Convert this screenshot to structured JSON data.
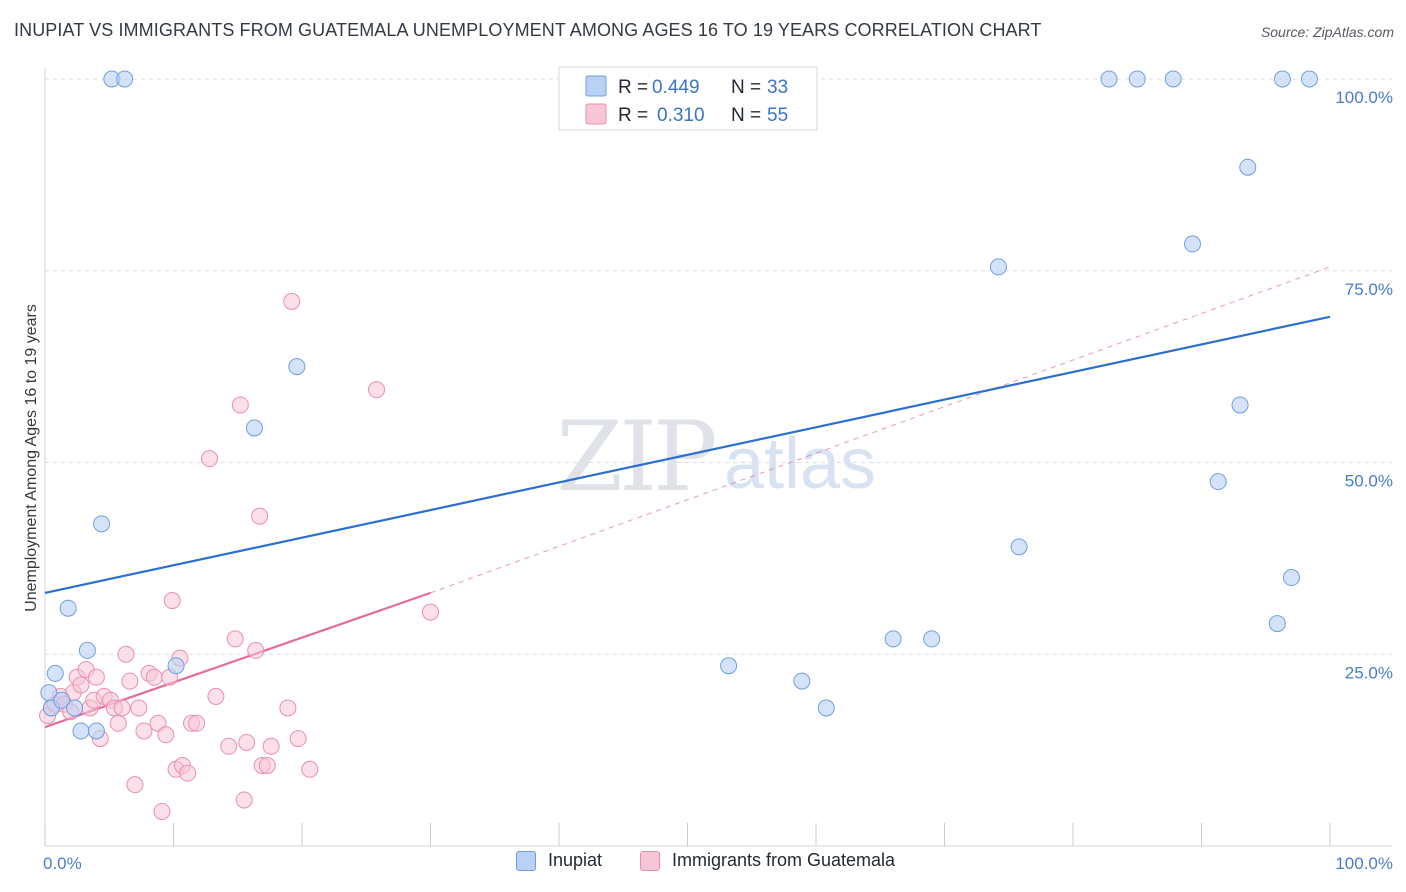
{
  "title": "INUPIAT VS IMMIGRANTS FROM GUATEMALA UNEMPLOYMENT AMONG AGES 16 TO 19 YEARS CORRELATION CHART",
  "source": "Source: ZipAtlas.com",
  "watermark": {
    "zip": "ZIP",
    "atlas": "atlas"
  },
  "colors": {
    "blue": "#6f9fe0",
    "blue_fill": "#b9d1f3",
    "blue_line": "#2b6fcf",
    "pink": "#ea8fae",
    "pink_fill": "#f7c6d6",
    "pink_line": "#e46c95",
    "tick": "#4a7ccc",
    "grid": "#d9dde3"
  },
  "legend": {
    "r_label": "R =",
    "n_label": "N =",
    "series": [
      {
        "r": "0.449",
        "n": "33"
      },
      {
        "r": "0.310",
        "n": "55"
      }
    ]
  },
  "bottom_legend": [
    "Inupiat",
    "Immigrants from Guatemala"
  ],
  "chart_data": {
    "type": "scatter",
    "title": "INUPIAT VS IMMIGRANTS FROM GUATEMALA UNEMPLOYMENT AMONG AGES 16 TO 19 YEARS CORRELATION CHART",
    "xlabel": "",
    "ylabel": "Unemployment Among Ages 16 to 19 years",
    "xlim": [
      0,
      100
    ],
    "ylim": [
      0,
      100
    ],
    "x_tick_labels": [
      "0.0%",
      "100.0%"
    ],
    "y_tick_labels": [
      {
        "value": 100,
        "label": "100.0%"
      },
      {
        "value": 75,
        "label": "75.0%"
      },
      {
        "value": 50,
        "label": "50.0%"
      },
      {
        "value": 25,
        "label": "25.0%"
      }
    ],
    "series": [
      {
        "name": "Inupiat",
        "color": "#6f9fe0",
        "r": 0.449,
        "n": 33,
        "trend": {
          "x": [
            0,
            100
          ],
          "y": [
            33,
            69
          ]
        },
        "points": [
          [
            0.3,
            20
          ],
          [
            0.5,
            18
          ],
          [
            0.8,
            22.5
          ],
          [
            1.3,
            19
          ],
          [
            1.8,
            31
          ],
          [
            2.3,
            18
          ],
          [
            2.8,
            15
          ],
          [
            3.3,
            25.5
          ],
          [
            4.0,
            15
          ],
          [
            4.4,
            42
          ],
          [
            5.2,
            100
          ],
          [
            6.2,
            100
          ],
          [
            10.2,
            23.5
          ],
          [
            16.3,
            54.5
          ],
          [
            19.6,
            62.5
          ],
          [
            53.2,
            23.5
          ],
          [
            58.9,
            21.5
          ],
          [
            60.8,
            18
          ],
          [
            66.0,
            27
          ],
          [
            69.0,
            27
          ],
          [
            74.2,
            75.5
          ],
          [
            75.8,
            39
          ],
          [
            82.8,
            100
          ],
          [
            85.0,
            100
          ],
          [
            87.8,
            100
          ],
          [
            89.3,
            78.5
          ],
          [
            91.3,
            47.5
          ],
          [
            93.0,
            57.5
          ],
          [
            93.6,
            88.5
          ],
          [
            95.9,
            29
          ],
          [
            96.3,
            100
          ],
          [
            97.0,
            35
          ],
          [
            98.4,
            100
          ]
        ]
      },
      {
        "name": "Immigrants from Guatemala",
        "color": "#ea8fae",
        "r": 0.31,
        "n": 55,
        "trend": {
          "x": [
            0,
            30
          ],
          "y": [
            15.5,
            33
          ]
        },
        "trend_ext": {
          "x": [
            30,
            100
          ],
          "y": [
            33,
            75.5
          ]
        },
        "points": [
          [
            0.2,
            17
          ],
          [
            0.5,
            18
          ],
          [
            0.8,
            18.5
          ],
          [
            1.2,
            19.5
          ],
          [
            1.5,
            18.5
          ],
          [
            2.0,
            17.5
          ],
          [
            2.2,
            20
          ],
          [
            2.5,
            22
          ],
          [
            2.8,
            21
          ],
          [
            3.2,
            23
          ],
          [
            3.5,
            18
          ],
          [
            3.8,
            19
          ],
          [
            4.0,
            22
          ],
          [
            4.3,
            14
          ],
          [
            4.6,
            19.5
          ],
          [
            5.1,
            19
          ],
          [
            5.4,
            18
          ],
          [
            5.7,
            16
          ],
          [
            6.0,
            18
          ],
          [
            6.3,
            25
          ],
          [
            6.6,
            21.5
          ],
          [
            7.0,
            8
          ],
          [
            7.3,
            18
          ],
          [
            7.7,
            15
          ],
          [
            8.1,
            22.5
          ],
          [
            8.5,
            22
          ],
          [
            8.8,
            16
          ],
          [
            9.1,
            4.5
          ],
          [
            9.4,
            14.5
          ],
          [
            9.7,
            22
          ],
          [
            9.9,
            32
          ],
          [
            10.2,
            10
          ],
          [
            10.5,
            24.5
          ],
          [
            10.7,
            10.5
          ],
          [
            11.1,
            9.5
          ],
          [
            11.4,
            16
          ],
          [
            11.8,
            16
          ],
          [
            12.8,
            50.5
          ],
          [
            13.3,
            19.5
          ],
          [
            14.3,
            13
          ],
          [
            14.8,
            27
          ],
          [
            15.2,
            57.5
          ],
          [
            15.5,
            6
          ],
          [
            15.7,
            13.5
          ],
          [
            16.4,
            25.5
          ],
          [
            16.7,
            43
          ],
          [
            16.9,
            10.5
          ],
          [
            17.3,
            10.5
          ],
          [
            17.6,
            13
          ],
          [
            18.9,
            18
          ],
          [
            19.2,
            71
          ],
          [
            19.7,
            14
          ],
          [
            20.6,
            10
          ],
          [
            25.8,
            59.5
          ],
          [
            30.0,
            30.5
          ]
        ]
      }
    ]
  }
}
